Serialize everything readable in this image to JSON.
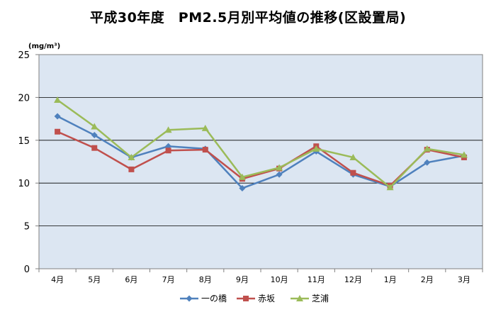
{
  "chart_data": {
    "type": "line",
    "title": "平成30年度　PM2.5月別平均値の推移(区設置局)",
    "ylabel": "(mg/m³)",
    "xlabel": "",
    "categories": [
      "4月",
      "5月",
      "6月",
      "7月",
      "8月",
      "9月",
      "10月",
      "11月",
      "12月",
      "1月",
      "2月",
      "3月"
    ],
    "ylim": [
      0,
      25
    ],
    "yticks": [
      0,
      5,
      10,
      15,
      20,
      25
    ],
    "grid": true,
    "legend_position": "bottom",
    "plot_background": "#dce6f2",
    "series": [
      {
        "name": "一の橋",
        "color": "#4f81bd",
        "marker": "diamond",
        "values": [
          17.8,
          15.6,
          13.0,
          14.3,
          14.0,
          9.4,
          11.0,
          13.7,
          11.0,
          9.6,
          12.4,
          13.2
        ]
      },
      {
        "name": "赤坂",
        "color": "#c0504d",
        "marker": "square",
        "values": [
          16.0,
          14.1,
          11.6,
          13.8,
          13.9,
          10.5,
          11.7,
          14.3,
          11.2,
          9.7,
          13.9,
          13.0
        ]
      },
      {
        "name": "芝浦",
        "color": "#9bbb59",
        "marker": "triangle",
        "values": [
          19.7,
          16.6,
          13.0,
          16.2,
          16.4,
          10.7,
          11.8,
          14.0,
          13.0,
          9.5,
          14.0,
          13.3
        ]
      }
    ]
  }
}
